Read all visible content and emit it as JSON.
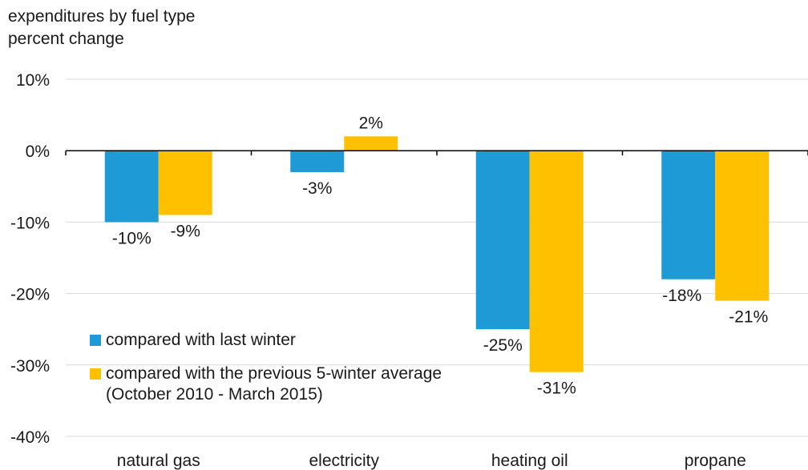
{
  "header": {
    "line1": "expenditures by fuel type",
    "line2": "percent change"
  },
  "legend": {
    "item1": "compared with last winter",
    "item2_line1": "compared with the previous 5-winter average",
    "item2_line2": "(October 2010 - March 2015)"
  },
  "colors": {
    "series1": "#1e9ad6",
    "series2": "#ffc000",
    "grid": "#d9d9d9",
    "axis": "#000000"
  },
  "chart_data": {
    "type": "bar",
    "categories": [
      "natural gas",
      "electricity",
      "heating oil",
      "propane"
    ],
    "series": [
      {
        "name": "compared with last winter",
        "values": [
          -10,
          -3,
          -25,
          -18
        ]
      },
      {
        "name": "compared with the previous 5-winter average (October 2010 - March 2015)",
        "values": [
          -9,
          2,
          -31,
          -21
        ]
      }
    ],
    "data_labels": [
      [
        "-10%",
        "-3%",
        "-25%",
        "-18%"
      ],
      [
        "-9%",
        "2%",
        "-31%",
        "-21%"
      ]
    ],
    "ylim": [
      -40,
      10
    ],
    "yticks": [
      10,
      0,
      -10,
      -20,
      -30,
      -40
    ],
    "ytick_labels": [
      "10%",
      "0%",
      "-10%",
      "-20%",
      "-30%",
      "-40%"
    ],
    "grid": true,
    "legend_position": "lower-left"
  }
}
